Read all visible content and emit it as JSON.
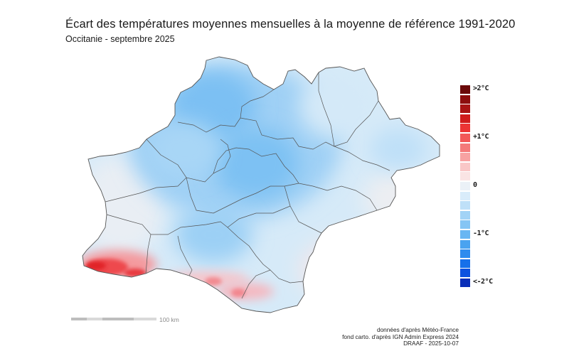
{
  "header": {
    "title": "Écart des températures moyennes mensuelles à la moyenne de référence 1991-2020",
    "subtitle": "Occitanie - septembre 2025"
  },
  "legend": {
    "colors": [
      "#6b0a0a",
      "#8c0e0e",
      "#a81414",
      "#d01c1c",
      "#ec3434",
      "#f25858",
      "#f47a7a",
      "#f7a2a2",
      "#f9c7c7",
      "#fae4e4",
      "#ebf1f7",
      "#d9ecfa",
      "#bfe0f8",
      "#a2d3f6",
      "#85c5f4",
      "#68b6f2",
      "#4aa3f0",
      "#2e8cee",
      "#1670ea",
      "#0c52e0",
      "#0a2fb8"
    ],
    "labels": [
      {
        "text": ">2°C",
        "index": 0
      },
      {
        "text": "+1°C",
        "index": 5
      },
      {
        "text": "0",
        "index": 10
      },
      {
        "text": "-1°C",
        "index": 15
      },
      {
        "text": "<-2°C",
        "index": 20
      }
    ]
  },
  "scale": {
    "label": "100 km"
  },
  "credits": {
    "line1": "données d'après Météo-France",
    "line2": "fond carto. d'après IGN Admin Express 2024",
    "line3": "DRAAF - 2025-10-07"
  }
}
